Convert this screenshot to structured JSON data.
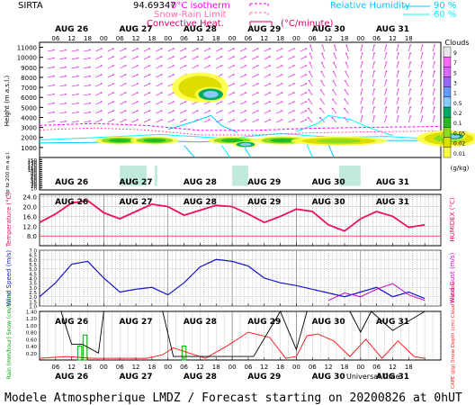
{
  "header": {
    "site": "SIRTA",
    "site_code": "94.69347",
    "legend_isotherm": "0°C isotherm",
    "legend_snow_rain": "Snow-Rain Limit",
    "legend_convective": "Convective Heat.",
    "legend_convective_unit": "(°C/minute)",
    "legend_rh": "Relative Humidity",
    "legend_rh_90": "90 %",
    "legend_rh_60": "60 %"
  },
  "footer": {
    "title": "Modele Atmospherique LMDZ / Forecast starting on 20200826 at 0hUT",
    "universal_time": "Universal Time"
  },
  "colors": {
    "isotherm": "#ff00ff",
    "snow_rain": "#ff3aa0",
    "convective": "#e0006a",
    "rh90": "#00c8ff",
    "rh60": "#00ffff",
    "temperature": "#ee1060",
    "wind_speed": "#1414c8",
    "wind_gust": "#c800c8",
    "rain": "#00aa00",
    "cape": "#ff2020",
    "cloud_fraction": "#000000"
  },
  "days": [
    "AUG 26",
    "AUG 27",
    "AUG 28",
    "AUG 29",
    "AUG 30",
    "AUG 31"
  ],
  "hour_ticks": [
    "06",
    "12",
    "18",
    "00"
  ],
  "chart_data": [
    {
      "type": "heatmap",
      "title": "Clouds",
      "ylabel": "Height (m a.s.l.)",
      "ylabel_low": "Up to 200 m a.g.l.",
      "y_ticks": [
        1000,
        2000,
        3000,
        4000,
        5000,
        6000,
        7000,
        8000,
        9000,
        10000,
        11000
      ],
      "y_ticks_low": [
        10,
        20,
        30,
        40,
        50,
        60,
        70,
        80,
        90,
        100,
        110,
        120,
        130,
        140,
        150
      ],
      "colorbar_unit": "(g/kg)",
      "colorbar_levels": [
        "9",
        "7",
        "5",
        "3",
        "1",
        "0.5",
        "0.2",
        "0.1",
        "0.05",
        "0.02",
        "0.01"
      ],
      "colorbar_colors": [
        "#e8e8e8",
        "#ff66ff",
        "#dd66ff",
        "#9966ff",
        "#6699ff",
        "#88ccff",
        "#00aa66",
        "#22bb22",
        "#88dd22",
        "#dddd00",
        "#ffff44"
      ],
      "cloud_blobs": [
        {
          "x": 30,
          "y": 1700,
          "rx": 6,
          "ry": 260,
          "level": 3
        },
        {
          "x": 43,
          "y": 1700,
          "rx": 6,
          "ry": 260,
          "level": 3
        },
        {
          "x": 60,
          "y": 7000,
          "rx": 7,
          "ry": 1000,
          "level": 1
        },
        {
          "x": 64,
          "y": 6300,
          "rx": 4,
          "ry": 500,
          "level": 5
        },
        {
          "x": 72,
          "y": 1700,
          "rx": 6,
          "ry": 250,
          "level": 3
        },
        {
          "x": 77,
          "y": 1300,
          "rx": 3,
          "ry": 220,
          "level": 5
        },
        {
          "x": 91,
          "y": 1700,
          "rx": 7,
          "ry": 280,
          "level": 3
        },
        {
          "x": 112,
          "y": 1650,
          "rx": 12,
          "ry": 300,
          "level": 2
        },
        {
          "x": 153,
          "y": 1900,
          "rx": 8,
          "ry": 550,
          "level": 2
        },
        {
          "x": 155,
          "y": 2100,
          "rx": 3,
          "ry": 250,
          "level": 5
        },
        {
          "x": 198,
          "y": 1700,
          "rx": 4,
          "ry": 220,
          "level": 3
        },
        {
          "x": 208,
          "y": 7600,
          "rx": 1.5,
          "ry": 450,
          "level": 1
        },
        {
          "x": 218,
          "y": 1800,
          "rx": 10,
          "ry": 380,
          "level": 2
        },
        {
          "x": 226,
          "y": 1800,
          "rx": 3,
          "ry": 200,
          "level": 5
        },
        {
          "x": 262,
          "y": 1900,
          "rx": 8,
          "ry": 250,
          "level": 1
        }
      ]
    },
    {
      "type": "line",
      "ylabel": "Temperature (°C)",
      "ylabel_right": "HUMIDEX (°C)",
      "y_ticks": [
        8.0,
        12.0,
        16.0,
        20.0,
        24.0
      ],
      "ylim": [
        4.0,
        25.0
      ],
      "x": [
        0,
        6,
        12,
        18,
        24,
        30,
        36,
        42,
        48,
        54,
        60,
        66,
        72,
        78,
        84,
        90,
        96,
        102,
        108,
        114,
        120,
        126,
        132,
        138,
        144
      ],
      "series": [
        {
          "values": [
            13.5,
            17.0,
            21.5,
            22.5,
            17.5,
            15.0,
            18.0,
            21.0,
            20.0,
            16.5,
            18.5,
            20.5,
            20.0,
            17.0,
            13.5,
            16.0,
            19.0,
            18.0,
            12.5,
            10.0,
            15.0,
            18.0,
            16.0,
            11.5,
            12.5
          ]
        }
      ]
    },
    {
      "type": "line",
      "ylabel": "Wind Speed (m/s)",
      "ylabel_right": "Wind Gust (m/s)",
      "y_ticks": [
        1.0,
        1.5,
        2.0,
        2.5,
        3.0,
        3.5,
        4.0,
        4.5,
        5.0,
        5.5,
        6.0,
        6.5,
        7.0
      ],
      "ylim": [
        1.0,
        7.0
      ],
      "x": [
        0,
        6,
        12,
        18,
        24,
        30,
        36,
        42,
        48,
        54,
        60,
        66,
        72,
        78,
        84,
        90,
        96,
        102,
        108,
        114,
        120,
        126,
        132,
        138,
        144
      ],
      "series": [
        {
          "values": [
            2.0,
            3.5,
            5.5,
            5.8,
            4.0,
            2.5,
            2.8,
            3.0,
            2.2,
            3.5,
            5.2,
            6.0,
            5.8,
            5.3,
            4.0,
            3.5,
            3.2,
            2.8,
            2.4,
            2.0,
            2.5,
            3.0,
            2.0,
            2.5,
            1.8
          ]
        },
        {
          "values": [
            null,
            null,
            null,
            null,
            null,
            null,
            null,
            null,
            null,
            null,
            null,
            null,
            null,
            null,
            null,
            null,
            null,
            null,
            1.6,
            2.4,
            2.0,
            2.8,
            3.4,
            2.2,
            1.6
          ]
        }
      ]
    },
    {
      "type": "bar",
      "ylabel": "Rain (mm/hour) Snow (cm/hour)",
      "ylabel_right": "CAPE (J/g) Snow Depth (cm) Cloud Fraction",
      "y_ticks": [
        0.2,
        0.4,
        0.6,
        0.8,
        1.0,
        1.2,
        1.4
      ],
      "ylim": [
        0.0,
        1.4
      ],
      "rain_bars": [
        {
          "x": 15,
          "value": 0.4
        },
        {
          "x": 17,
          "value": 0.72
        },
        {
          "x": 54,
          "value": 0.4
        }
      ],
      "cape_x": [
        0,
        10,
        20,
        30,
        40,
        46,
        50,
        56,
        62,
        70,
        78,
        86,
        92,
        96,
        100,
        104,
        110,
        116,
        122,
        128,
        134,
        140,
        144
      ],
      "cape_values": [
        0.05,
        0.1,
        0.05,
        0.05,
        0.05,
        0.15,
        0.35,
        0.2,
        0.05,
        0.4,
        0.8,
        0.65,
        0.05,
        0.1,
        0.7,
        0.75,
        0.55,
        0.1,
        0.6,
        0.05,
        0.55,
        0.1,
        0.05
      ],
      "cloud_fraction_x": [
        0,
        8,
        12,
        16,
        22,
        24,
        28,
        40,
        46,
        50,
        60,
        72,
        80,
        90,
        96,
        100,
        110,
        116,
        120,
        124,
        132,
        144
      ],
      "cloud_fraction_values": [
        1.4,
        1.4,
        0.45,
        0.45,
        0.2,
        1.4,
        1.4,
        1.4,
        1.4,
        0.1,
        0.1,
        0.1,
        0.1,
        1.4,
        0.3,
        1.4,
        1.4,
        1.4,
        0.8,
        1.4,
        0.85,
        1.4
      ]
    }
  ]
}
